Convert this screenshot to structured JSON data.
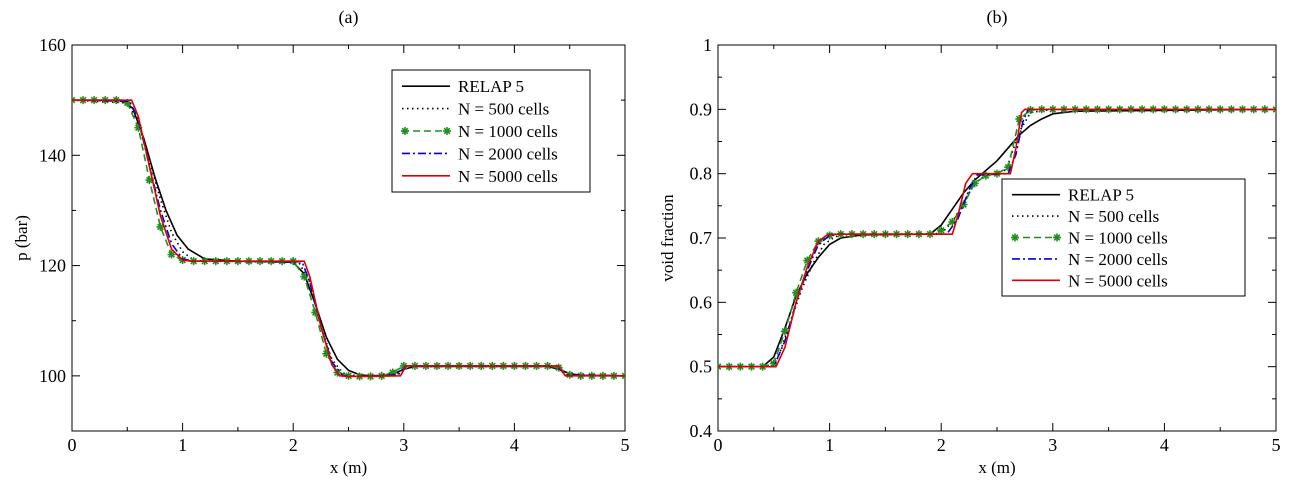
{
  "chart_data": [
    {
      "type": "line",
      "title": "(a)",
      "xlabel": "x (m)",
      "ylabel": "p (bar)",
      "xlim": [
        0,
        5
      ],
      "ylim": [
        90,
        160
      ],
      "xticks": [
        0,
        1,
        2,
        3,
        4,
        5
      ],
      "yticks": [
        100,
        120,
        140,
        160
      ],
      "grid": false,
      "legend_position": "top-right",
      "series": [
        {
          "name": "RELAP 5",
          "color": "#000000",
          "style": "solid",
          "marker": "none",
          "x": [
            0,
            0.45,
            0.55,
            0.65,
            0.75,
            0.85,
            0.95,
            1.05,
            1.2,
            1.5,
            2.0,
            2.1,
            2.2,
            2.3,
            2.4,
            2.5,
            2.6,
            2.75,
            2.9,
            3.0,
            3.1,
            4.3,
            4.4,
            4.5,
            4.6,
            5.0
          ],
          "y": [
            150,
            150,
            148.5,
            143,
            136,
            130,
            125.5,
            123,
            121.2,
            120.8,
            120.6,
            118.5,
            113,
            107,
            103,
            101,
            100.2,
            99.9,
            100.3,
            101.2,
            101.7,
            101.7,
            101.2,
            100.4,
            100.1,
            100
          ]
        },
        {
          "name": "N = 500 cells",
          "color": "#000000",
          "style": "dotted",
          "marker": "none",
          "x": [
            0,
            0.5,
            0.6,
            0.7,
            0.8,
            0.9,
            1.0,
            1.1,
            1.2,
            2.05,
            2.15,
            2.25,
            2.35,
            2.45,
            2.6,
            2.9,
            3.0,
            3.05,
            4.35,
            4.45,
            4.55,
            5.0
          ],
          "y": [
            150,
            149.5,
            146,
            139,
            132,
            126,
            122.5,
            121,
            120.8,
            120.6,
            117,
            109,
            103,
            100.5,
            99.9,
            100,
            101,
            101.7,
            101.7,
            100.8,
            100.1,
            100
          ]
        },
        {
          "name": "N = 1000 cells",
          "color": "#1f8f1f",
          "style": "dashed",
          "marker": "star",
          "x": [
            0,
            0.1,
            0.2,
            0.3,
            0.4,
            0.5,
            0.6,
            0.7,
            0.8,
            0.9,
            1.0,
            1.1,
            1.2,
            1.3,
            1.4,
            1.5,
            1.6,
            1.7,
            1.8,
            1.9,
            2.0,
            2.1,
            2.2,
            2.3,
            2.4,
            2.5,
            2.6,
            2.7,
            2.8,
            2.9,
            3.0,
            3.1,
            3.2,
            3.3,
            3.4,
            3.5,
            3.6,
            3.7,
            3.8,
            3.9,
            4.0,
            4.1,
            4.2,
            4.3,
            4.4,
            4.5,
            4.6,
            4.7,
            4.8,
            4.9,
            5.0
          ],
          "y": [
            150,
            150,
            150,
            150,
            150,
            149.5,
            145,
            135.5,
            127,
            122,
            121,
            120.8,
            120.8,
            120.8,
            120.8,
            120.8,
            120.8,
            120.8,
            120.8,
            120.8,
            120.8,
            118,
            111.5,
            104,
            100.6,
            100,
            99.9,
            99.9,
            100,
            100.6,
            101.8,
            101.8,
            101.8,
            101.8,
            101.8,
            101.8,
            101.8,
            101.8,
            101.8,
            101.8,
            101.8,
            101.8,
            101.8,
            101.8,
            101.5,
            100.2,
            100,
            100,
            100,
            100,
            100
          ]
        },
        {
          "name": "N = 2000 cells",
          "color": "#0000cc",
          "style": "dashdot",
          "marker": "none",
          "x": [
            0,
            0.52,
            0.6,
            0.7,
            0.8,
            0.9,
            1.0,
            1.1,
            2.08,
            2.15,
            2.25,
            2.35,
            2.45,
            2.55,
            2.95,
            3.02,
            4.38,
            4.46,
            5.0
          ],
          "y": [
            150,
            149.8,
            146.5,
            138,
            130,
            124,
            121.2,
            120.8,
            120.7,
            117,
            109,
            102.5,
            100,
            99.9,
            100.2,
            101.8,
            101.8,
            100.2,
            100
          ]
        },
        {
          "name": "N = 5000 cells",
          "color": "#dd0000",
          "style": "solid",
          "marker": "none",
          "x": [
            0,
            0.54,
            0.6,
            0.7,
            0.8,
            0.9,
            1.0,
            1.08,
            2.1,
            2.15,
            2.25,
            2.35,
            2.42,
            2.5,
            2.97,
            3.02,
            4.4,
            4.46,
            5.0
          ],
          "y": [
            150,
            150,
            147,
            138,
            129,
            123,
            121,
            120.8,
            120.8,
            118,
            109,
            102,
            100,
            99.9,
            100,
            101.8,
            101.8,
            100,
            100
          ]
        }
      ]
    },
    {
      "type": "line",
      "title": "(b)",
      "xlabel": "x (m)",
      "ylabel": "void fraction",
      "xlim": [
        0,
        5
      ],
      "ylim": [
        0.4,
        1.0
      ],
      "xticks": [
        0,
        1,
        2,
        3,
        4,
        5
      ],
      "yticks": [
        0.4,
        0.5,
        0.6,
        0.7,
        0.8,
        0.9,
        1
      ],
      "grid": false,
      "legend_position": "center-right",
      "series": [
        {
          "name": "RELAP 5",
          "color": "#000000",
          "style": "solid",
          "marker": "none",
          "x": [
            0,
            0.4,
            0.5,
            0.6,
            0.7,
            0.8,
            0.9,
            1.0,
            1.1,
            1.3,
            1.9,
            2.0,
            2.1,
            2.2,
            2.3,
            2.4,
            2.5,
            2.6,
            2.7,
            2.8,
            2.9,
            3.0,
            3.2,
            5.0
          ],
          "y": [
            0.5,
            0.5,
            0.515,
            0.56,
            0.61,
            0.645,
            0.67,
            0.69,
            0.7,
            0.705,
            0.706,
            0.72,
            0.745,
            0.77,
            0.79,
            0.805,
            0.82,
            0.84,
            0.86,
            0.875,
            0.885,
            0.893,
            0.897,
            0.9
          ]
        },
        {
          "name": "N = 500 cells",
          "color": "#000000",
          "style": "dotted",
          "marker": "none",
          "x": [
            0,
            0.45,
            0.55,
            0.65,
            0.75,
            0.85,
            0.95,
            1.05,
            1.15,
            2.0,
            2.1,
            2.2,
            2.3,
            2.4,
            2.55,
            2.6,
            2.7,
            2.8,
            3.0,
            5.0
          ],
          "y": [
            0.5,
            0.5,
            0.52,
            0.57,
            0.62,
            0.66,
            0.69,
            0.702,
            0.705,
            0.707,
            0.725,
            0.755,
            0.785,
            0.798,
            0.8,
            0.815,
            0.865,
            0.895,
            0.9,
            0.9
          ]
        },
        {
          "name": "N = 1000 cells",
          "color": "#1f8f1f",
          "style": "dashed",
          "marker": "star",
          "x": [
            0,
            0.1,
            0.2,
            0.3,
            0.4,
            0.5,
            0.6,
            0.7,
            0.8,
            0.9,
            1.0,
            1.1,
            1.2,
            1.3,
            1.4,
            1.5,
            1.6,
            1.7,
            1.8,
            1.9,
            2.0,
            2.1,
            2.2,
            2.3,
            2.4,
            2.5,
            2.6,
            2.7,
            2.8,
            2.9,
            3.0,
            3.1,
            3.2,
            3.3,
            3.4,
            3.5,
            3.6,
            3.7,
            3.8,
            3.9,
            4.0,
            4.1,
            4.2,
            4.3,
            4.4,
            4.5,
            4.6,
            4.7,
            4.8,
            4.9,
            5.0
          ],
          "y": [
            0.5,
            0.5,
            0.5,
            0.5,
            0.5,
            0.505,
            0.555,
            0.615,
            0.665,
            0.695,
            0.704,
            0.706,
            0.706,
            0.706,
            0.706,
            0.706,
            0.706,
            0.706,
            0.706,
            0.706,
            0.712,
            0.725,
            0.752,
            0.785,
            0.797,
            0.8,
            0.81,
            0.885,
            0.899,
            0.9,
            0.9,
            0.9,
            0.9,
            0.9,
            0.9,
            0.9,
            0.9,
            0.9,
            0.9,
            0.9,
            0.9,
            0.9,
            0.9,
            0.9,
            0.9,
            0.9,
            0.9,
            0.9,
            0.9,
            0.9,
            0.9
          ]
        },
        {
          "name": "N = 2000 cells",
          "color": "#0000cc",
          "style": "dashdot",
          "marker": "none",
          "x": [
            0,
            0.5,
            0.6,
            0.7,
            0.8,
            0.9,
            1.0,
            1.08,
            2.05,
            2.15,
            2.25,
            2.32,
            2.6,
            2.67,
            2.73,
            2.78,
            5.0
          ],
          "y": [
            0.5,
            0.5,
            0.54,
            0.6,
            0.65,
            0.69,
            0.704,
            0.706,
            0.706,
            0.73,
            0.775,
            0.798,
            0.8,
            0.83,
            0.88,
            0.9,
            0.9
          ]
        },
        {
          "name": "N = 5000 cells",
          "color": "#dd0000",
          "style": "solid",
          "marker": "none",
          "x": [
            0,
            0.52,
            0.6,
            0.7,
            0.8,
            0.9,
            0.98,
            1.05,
            2.1,
            2.15,
            2.22,
            2.28,
            2.62,
            2.67,
            2.72,
            2.75,
            5.0
          ],
          "y": [
            0.5,
            0.5,
            0.53,
            0.6,
            0.655,
            0.695,
            0.705,
            0.706,
            0.706,
            0.735,
            0.785,
            0.8,
            0.8,
            0.84,
            0.895,
            0.9,
            0.9
          ]
        }
      ]
    }
  ]
}
